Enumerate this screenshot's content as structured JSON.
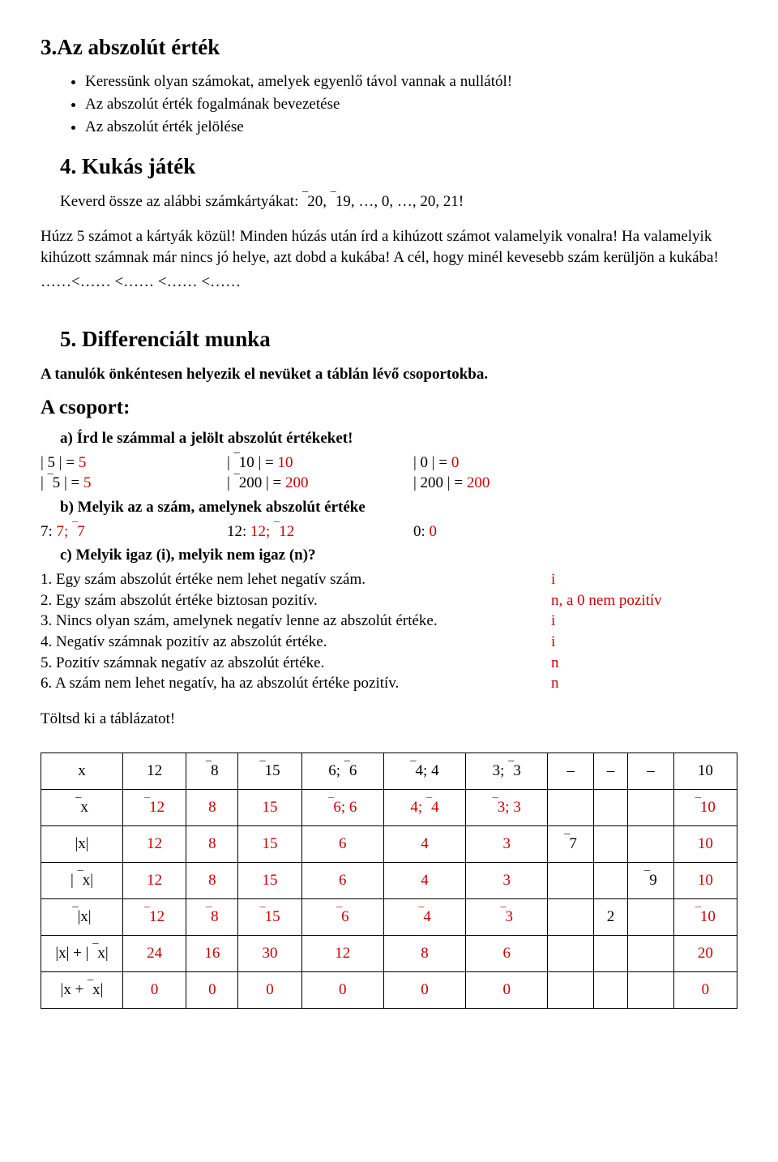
{
  "s3": {
    "title": "3.Az abszolút érték",
    "bullets": [
      "Keressünk olyan számokat, amelyek egyenlő távol vannak a nullától!",
      "Az abszolút érték fogalmának bevezetése",
      "Az  abszolút érték jelölése"
    ]
  },
  "s4": {
    "title": "4. Kukás játék",
    "intro_prefix": "Keverd össze az alábbi számkártyákat:  ",
    "intro_cards": "¯20, ¯19, …, 0, …, 20, 21!",
    "p1": "Húzz 5 számot a kártyák közül! Minden húzás után írd a kihúzott számot valamelyik vonalra! Ha valamelyik kihúzott számnak már nincs jó helye, azt dobd a kukába! A cél, hogy minél kevesebb szám kerüljön a kukába!",
    "p2": "……<…… <…… <…… <……"
  },
  "s5": {
    "title": "5. Differenciált munka",
    "sub": "A tanulók önkéntesen helyezik el nevüket a táblán lévő csoportokba.",
    "group": "A csoport:",
    "a_label": "a) Írd le számmal a jelölt abszolút értékeket!",
    "a_rows": [
      [
        "| 5 | = 5",
        "| ¯10 | = 10",
        "| 0 | = 0"
      ],
      [
        "| ¯5 | = 5",
        "| ¯200 | = 200",
        "| 200 | = 200"
      ]
    ],
    "b_label": "b) Melyik az a szám, amelynek abszolút értéke",
    "b_rows": [
      [
        "7: 7; ¯7",
        "12: 12; ¯12",
        "0: 0"
      ]
    ],
    "c_label": "c) Melyik igaz (i), melyik nem igaz (n)?",
    "statements": [
      {
        "t": "1. Egy szám abszolút értéke nem lehet negatív szám.",
        "a": "i",
        "red": false
      },
      {
        "t": "2. Egy szám abszolút értéke biztosan pozitív.",
        "a": "n, a 0 nem pozitív",
        "red": true
      },
      {
        "t": "3. Nincs olyan szám, amelynek negatív lenne az abszolút értéke.",
        "a": "i",
        "red": false
      },
      {
        "t": "4. Negatív számnak pozitív az abszolút értéke.",
        "a": "i",
        "red": false
      },
      {
        "t": "5. Pozitív számnak negatív az abszolút értéke.",
        "a": "n",
        "red": true
      },
      {
        "t": "6. A szám nem lehet negatív, ha az abszolút értéke pozitív.",
        "a": "n",
        "red": true
      }
    ],
    "fill": "Töltsd ki a táblázatot!"
  },
  "table": {
    "header_labels": [
      "x",
      "¯x",
      "|x|",
      "| ¯x|",
      "¯|x|",
      "|x| + | ¯x|",
      "|x + ¯x|"
    ],
    "rows": [
      [
        "12",
        "¯8",
        "¯15",
        "6; ¯6",
        "¯4; 4",
        "3; ¯3",
        "–",
        "–",
        "–",
        "10"
      ],
      [
        "¯12",
        "8",
        "15",
        "¯6; 6",
        "4; ¯4",
        "¯3; 3",
        "",
        "",
        "",
        "¯10"
      ],
      [
        "12",
        "8",
        "15",
        "6",
        "4",
        "3",
        "¯7",
        "",
        "",
        "10"
      ],
      [
        "12",
        "8",
        "15",
        "6",
        "4",
        "3",
        "",
        "",
        "¯9",
        "10"
      ],
      [
        "¯12",
        "¯8",
        "¯15",
        "¯6",
        "¯4",
        "¯3",
        "",
        "2",
        "",
        "¯10"
      ],
      [
        "24",
        "16",
        "30",
        "12",
        "8",
        "6",
        "",
        "",
        "",
        "20"
      ],
      [
        "0",
        "0",
        "0",
        "0",
        "0",
        "0",
        "",
        "",
        "",
        "0"
      ]
    ],
    "red_rows": [
      1,
      2,
      3,
      4,
      5,
      6
    ],
    "answer_cols": [
      true,
      true,
      true,
      true,
      true,
      true,
      false,
      false,
      false,
      true
    ]
  }
}
